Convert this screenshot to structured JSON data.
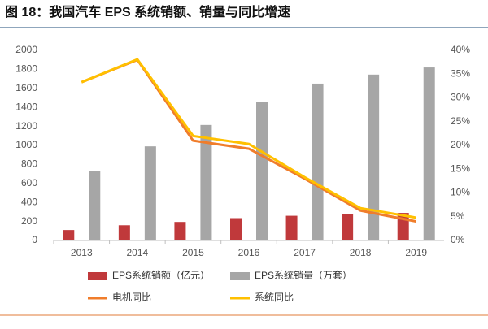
{
  "chart_data": {
    "type": "bar-line",
    "title": "图 18：我国汽车 EPS 系统销额、销量与同比增速",
    "categories": [
      "2013",
      "2014",
      "2015",
      "2016",
      "2017",
      "2018",
      "2019"
    ],
    "series": [
      {
        "name": "EPS系统销额（亿元）",
        "type": "bar",
        "color": "#c0393b",
        "values": [
          110,
          160,
          195,
          235,
          260,
          280,
          290
        ]
      },
      {
        "name": "EPS系统销量（万套）",
        "type": "bar",
        "color": "#a6a6a6",
        "values": [
          730,
          990,
          1215,
          1455,
          1650,
          1745,
          1820
        ]
      },
      {
        "name": "电机同比",
        "type": "line",
        "axis": "y2",
        "color": "#f07d2b",
        "values": [
          33.3,
          38,
          21,
          19.3,
          13,
          6.3,
          4
        ]
      },
      {
        "name": "系统同比",
        "type": "line",
        "axis": "y2",
        "color": "#ffc000",
        "values": [
          33.3,
          38.1,
          22,
          20.3,
          13.3,
          6.8,
          4.8
        ]
      }
    ],
    "ylim": [
      0,
      2000
    ],
    "yticks": [
      0,
      200,
      400,
      600,
      800,
      1000,
      1200,
      1400,
      1600,
      1800,
      2000
    ],
    "y2lim": [
      0,
      40
    ],
    "y2ticks": [
      {
        "value": 0,
        "label": "0%"
      },
      {
        "value": 5,
        "label": "5%"
      },
      {
        "value": 10,
        "label": "10%"
      },
      {
        "value": 15,
        "label": "15%"
      },
      {
        "value": 20,
        "label": "20%"
      },
      {
        "value": 25,
        "label": "25%"
      },
      {
        "value": 30,
        "label": "30%"
      },
      {
        "value": 35,
        "label": "35%"
      },
      {
        "value": 40,
        "label": "40%"
      }
    ]
  }
}
